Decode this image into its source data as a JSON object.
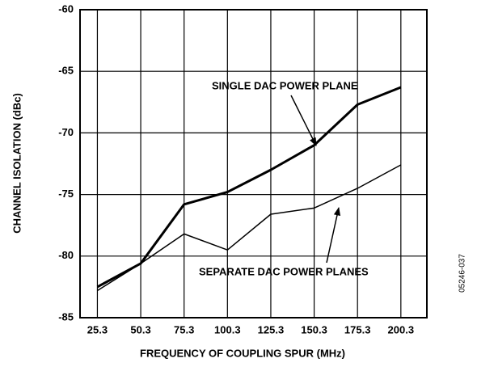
{
  "chart_data": {
    "type": "line",
    "x_label": "FREQUENCY OF COUPLING SPUR (MHz)",
    "y_label": "CHANNEL ISOLATION (dBc)",
    "x": [
      25.3,
      50.3,
      75.3,
      100.3,
      125.3,
      150.3,
      175.3,
      200.3
    ],
    "series": [
      {
        "name": "SINGLE DAC POWER PLANE",
        "color": "#000000",
        "line_width": 3,
        "values": [
          -82.5,
          -80.6,
          -75.8,
          -74.8,
          -73.0,
          -71.0,
          -67.7,
          -66.3
        ]
      },
      {
        "name": "SEPARATE DAC POWER PLANES",
        "color": "#000000",
        "line_width": 1.5,
        "values": [
          -82.8,
          -80.6,
          -78.2,
          -79.5,
          -76.6,
          -76.1,
          -74.5,
          -72.6
        ]
      }
    ],
    "xlim": [
      15.3,
      215.3
    ],
    "xticks": [
      25.3,
      50.3,
      75.3,
      100.3,
      125.3,
      150.3,
      175.3,
      200.3
    ],
    "ylim": [
      -85,
      -60
    ],
    "yticks": [
      -85,
      -80,
      -75,
      -70,
      -65,
      -60
    ],
    "grid": true,
    "figure_id": "05246-037"
  }
}
